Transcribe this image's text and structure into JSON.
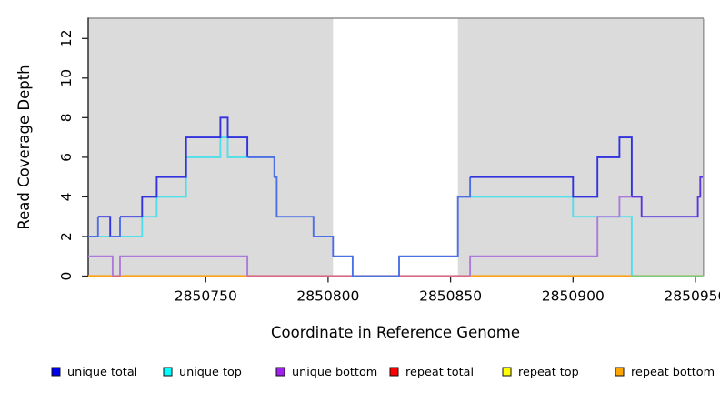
{
  "chart_data": {
    "type": "line",
    "subtype": "step",
    "title": "",
    "xlabel": "Coordinate in Reference Genome",
    "ylabel": "Read Coverage Depth",
    "xlim": [
      2850702,
      2850953
    ],
    "ylim": [
      0,
      13
    ],
    "x_ticks": [
      2850750,
      2850800,
      2850850,
      2850900,
      2850950
    ],
    "y_ticks": [
      0,
      2,
      4,
      6,
      8,
      10,
      12
    ],
    "grid": false,
    "legend_position": "bottom",
    "gray_regions": [
      [
        2850702,
        2850802
      ],
      [
        2850853,
        2850953
      ]
    ],
    "white_gap_region": [
      2850802,
      2850853
    ],
    "colors": {
      "plot_bg": "#DBDBDB",
      "axis": "#222222",
      "border": "#8F8F8F",
      "blend_total_over_top": "#4D6FE4",
      "blend_total_over_bottom": "#5A36DC",
      "blend_bottom_at_zero": "#D2688E",
      "blend_top_at_zero": "#7CC87C"
    },
    "series": [
      {
        "name": "unique total",
        "color": "#3232DF",
        "steps": [
          [
            2850702,
            2
          ],
          [
            2850706,
            3
          ],
          [
            2850711,
            2
          ],
          [
            2850715,
            3
          ],
          [
            2850724,
            4
          ],
          [
            2850730,
            5
          ],
          [
            2850742,
            7
          ],
          [
            2850756,
            8
          ],
          [
            2850759,
            7
          ],
          [
            2850767,
            6
          ],
          [
            2850778,
            5
          ],
          [
            2850779,
            3
          ],
          [
            2850794,
            2
          ],
          [
            2850802,
            1
          ],
          [
            2850810,
            0
          ],
          [
            2850829,
            1
          ],
          [
            2850853,
            4
          ],
          [
            2850858,
            5
          ],
          [
            2850900,
            4
          ],
          [
            2850910,
            6
          ],
          [
            2850919,
            7
          ],
          [
            2850924,
            4
          ],
          [
            2850928,
            3
          ],
          [
            2850951,
            4
          ],
          [
            2850952,
            5
          ]
        ]
      },
      {
        "name": "unique top",
        "color": "#4FDFE9",
        "steps": [
          [
            2850702,
            2
          ],
          [
            2850724,
            3
          ],
          [
            2850730,
            4
          ],
          [
            2850742,
            6
          ],
          [
            2850756,
            7
          ],
          [
            2850759,
            6
          ],
          [
            2850778,
            5
          ],
          [
            2850779,
            3
          ],
          [
            2850794,
            2
          ],
          [
            2850802,
            1
          ],
          [
            2850810,
            0
          ],
          [
            2850829,
            1
          ],
          [
            2850853,
            4
          ],
          [
            2850900,
            3
          ],
          [
            2850924,
            0
          ]
        ]
      },
      {
        "name": "unique bottom",
        "color": "#AD7ADB",
        "steps": [
          [
            2850702,
            1
          ],
          [
            2850712,
            0
          ],
          [
            2850715,
            1
          ],
          [
            2850767,
            0
          ],
          [
            2850858,
            1
          ],
          [
            2850910,
            3
          ],
          [
            2850919,
            4
          ],
          [
            2850928,
            3
          ],
          [
            2850951,
            4
          ],
          [
            2850952,
            5
          ]
        ]
      },
      {
        "name": "repeat total",
        "color": "#E01010",
        "steps": [
          [
            2850702,
            0
          ]
        ]
      },
      {
        "name": "repeat top",
        "color": "#F0F000",
        "steps": [
          [
            2850702,
            0
          ]
        ]
      },
      {
        "name": "repeat bottom",
        "color": "#FFA318",
        "steps": [
          [
            2850702,
            0
          ]
        ]
      }
    ],
    "legend": [
      {
        "label": "unique total",
        "color": "#0000EE"
      },
      {
        "label": "unique top",
        "color": "#00FFFF"
      },
      {
        "label": "unique bottom",
        "color": "#A020F0"
      },
      {
        "label": "repeat total",
        "color": "#FF0000"
      },
      {
        "label": "repeat top",
        "color": "#FFFF00"
      },
      {
        "label": "repeat bottom",
        "color": "#FFA500"
      }
    ]
  }
}
